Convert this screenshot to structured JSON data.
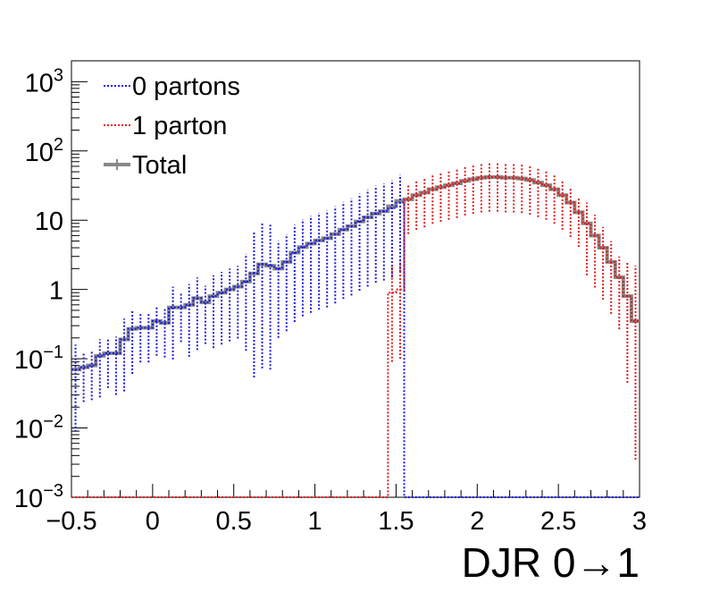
{
  "chart_data": {
    "type": "line",
    "title": "",
    "xlabel": "DJR 0→1",
    "ylabel": "",
    "xlim": [
      -0.5,
      3.0
    ],
    "ylim": [
      0.001,
      2000
    ],
    "y_scale": "log",
    "step_histogram": true,
    "bin_width": 0.05,
    "grid": false,
    "legend_position": "top-left",
    "x_tick_labels": [
      "−0.5",
      "0",
      "0.5",
      "1",
      "1.5",
      "2",
      "2.5",
      "3"
    ],
    "x_ticks": [
      -0.5,
      0,
      0.5,
      1,
      1.5,
      2,
      2.5,
      3
    ],
    "y_tick_labels": [
      {
        "value": 0.001,
        "base": "10",
        "exp": "−3"
      },
      {
        "value": 0.01,
        "base": "10",
        "exp": "−2"
      },
      {
        "value": 0.1,
        "base": "10",
        "exp": "−1"
      },
      {
        "value": 1,
        "base": "1",
        "exp": ""
      },
      {
        "value": 10,
        "base": "10",
        "exp": ""
      },
      {
        "value": 100,
        "base": "10",
        "exp": "2"
      },
      {
        "value": 1000,
        "base": "10",
        "exp": "3"
      }
    ],
    "series": [
      {
        "name": "0 partons",
        "color": "#1a1ae0",
        "style": "dotted",
        "x_start": -0.5,
        "values": [
          0.07,
          0.075,
          0.08,
          0.11,
          0.12,
          0.12,
          0.19,
          0.27,
          0.28,
          0.28,
          0.35,
          0.33,
          0.55,
          0.55,
          0.6,
          0.75,
          0.65,
          0.8,
          0.9,
          1.0,
          1.1,
          1.3,
          1.7,
          2.3,
          2.2,
          2.0,
          2.5,
          3.4,
          4.1,
          4.6,
          5.1,
          5.5,
          6.3,
          7.3,
          8.2,
          9.6,
          11.0,
          12.5,
          13.5,
          15.0,
          18.0,
          0.001,
          0.001,
          0.001,
          0.001,
          0.001,
          0.001,
          0.001,
          0.001,
          0.001,
          0.001,
          0.001,
          0.001,
          0.001,
          0.001,
          0.001,
          0.001,
          0.001,
          0.001,
          0.001,
          0.001,
          0.001,
          0.001,
          0.001,
          0.001,
          0.001,
          0.001,
          0.001,
          0.001,
          0.001
        ],
        "errors": [
          0.18,
          0.1,
          0.1,
          0.12,
          0.1,
          0.12,
          0.15,
          0.13,
          0.1,
          0.1,
          0.1,
          0.1,
          0.15,
          0.1,
          0.15,
          0.15,
          0.12,
          0.15,
          0.15,
          0.15,
          0.15,
          0.2,
          0.3,
          0.3,
          0.3,
          0.2,
          0.2,
          0.2,
          0.2,
          0.2,
          0.2,
          0.2,
          0.2,
          0.2,
          0.2,
          0.2,
          0.2,
          0.2,
          0.2,
          0.2,
          0.2,
          0,
          0,
          0,
          0,
          0,
          0,
          0,
          0,
          0,
          0,
          0,
          0,
          0,
          0,
          0,
          0,
          0,
          0,
          0,
          0,
          0,
          0,
          0,
          0,
          0,
          0,
          0,
          0,
          0
        ]
      },
      {
        "name": "1 parton",
        "color": "#e01a1a",
        "style": "dotted",
        "x_start": -0.5,
        "values": [
          0.001,
          0.001,
          0.001,
          0.001,
          0.001,
          0.001,
          0.001,
          0.001,
          0.001,
          0.001,
          0.001,
          0.001,
          0.001,
          0.001,
          0.001,
          0.001,
          0.001,
          0.001,
          0.001,
          0.001,
          0.001,
          0.001,
          0.001,
          0.001,
          0.001,
          0.001,
          0.001,
          0.001,
          0.001,
          0.001,
          0.001,
          0.001,
          0.001,
          0.001,
          0.001,
          0.001,
          0.001,
          0.001,
          0.001,
          0.9,
          1.0,
          20.0,
          23.0,
          25.0,
          28.0,
          30.0,
          32.0,
          34.0,
          37.0,
          39.0,
          41.0,
          42.0,
          42.0,
          41.0,
          41.0,
          40.0,
          38.0,
          35.0,
          32.0,
          28.0,
          23.0,
          18.0,
          13.0,
          9.0,
          6.0,
          4.0,
          2.5,
          1.5,
          0.8,
          0.35
        ],
        "errors": [
          0,
          0,
          0,
          0,
          0,
          0,
          0,
          0,
          0,
          0,
          0,
          0,
          0,
          0,
          0,
          0,
          0,
          0,
          0,
          0,
          0,
          0,
          0,
          0,
          0,
          0,
          0,
          0,
          0,
          0,
          0,
          0,
          0,
          0,
          0,
          0,
          0,
          0,
          0,
          0.2,
          0.2,
          0.1,
          0.1,
          0.1,
          0.1,
          0.1,
          0.1,
          0.1,
          0.1,
          0.1,
          0.1,
          0.1,
          0.1,
          0.1,
          0.1,
          0.1,
          0.1,
          0.1,
          0.1,
          0.1,
          0.1,
          0.1,
          0.1,
          0.15,
          0.15,
          0.15,
          0.15,
          0.15,
          0.25,
          0.4
        ]
      },
      {
        "name": "Total",
        "color": "#888888",
        "style": "solid",
        "x_start": -0.5,
        "values": [
          0.07,
          0.075,
          0.08,
          0.11,
          0.12,
          0.12,
          0.19,
          0.27,
          0.28,
          0.28,
          0.35,
          0.33,
          0.55,
          0.55,
          0.6,
          0.75,
          0.65,
          0.8,
          0.9,
          1.0,
          1.1,
          1.3,
          1.7,
          2.3,
          2.2,
          2.0,
          2.5,
          3.4,
          4.1,
          4.6,
          5.1,
          5.5,
          6.3,
          7.3,
          8.2,
          9.6,
          11.0,
          12.5,
          13.5,
          15.9,
          19.0,
          20.0,
          23.0,
          25.0,
          28.0,
          30.0,
          32.0,
          34.0,
          37.0,
          39.0,
          41.0,
          42.0,
          42.0,
          41.0,
          41.0,
          40.0,
          38.0,
          35.0,
          32.0,
          28.0,
          23.0,
          18.0,
          13.0,
          9.0,
          6.0,
          4.0,
          2.5,
          1.5,
          0.8,
          0.35
        ]
      }
    ]
  }
}
